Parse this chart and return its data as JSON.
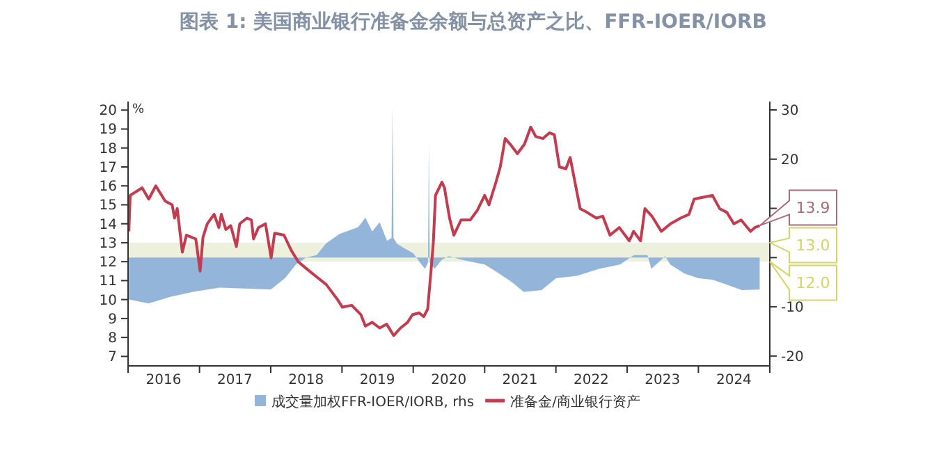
{
  "chart_data": {
    "type": "line",
    "title": "图表 1:   美国商业银行准备金余额与总资产之比、FFR-IOER/IORB",
    "ylabel": "%",
    "legend": "bottom",
    "grid": false,
    "xlim": [
      "2016-01-01",
      "2025-01-01"
    ],
    "xticks": [
      {
        "value": "2016-01-01",
        "label": null
      },
      {
        "value": "2016-07-01",
        "label": "2016"
      },
      {
        "value": "2017-01-01",
        "label": null
      },
      {
        "value": "2017-07-01",
        "label": "2017"
      },
      {
        "value": "2018-01-01",
        "label": null
      },
      {
        "value": "2018-07-01",
        "label": "2018"
      },
      {
        "value": "2019-01-01",
        "label": null
      },
      {
        "value": "2019-07-01",
        "label": "2019"
      },
      {
        "value": "2020-01-01",
        "label": null
      },
      {
        "value": "2020-07-01",
        "label": "2020"
      },
      {
        "value": "2021-01-01",
        "label": null
      },
      {
        "value": "2021-07-01",
        "label": "2021"
      },
      {
        "value": "2022-01-01",
        "label": null
      },
      {
        "value": "2022-07-01",
        "label": "2022"
      },
      {
        "value": "2023-01-01",
        "label": null
      },
      {
        "value": "2023-07-01",
        "label": "2023"
      },
      {
        "value": "2024-01-01",
        "label": null
      },
      {
        "value": "2024-07-01",
        "label": "2024"
      },
      {
        "value": "2025-01-01",
        "label": null
      }
    ],
    "ylim": [
      6.5,
      20.45
    ],
    "yticks": [
      7,
      8,
      9,
      10,
      11,
      12,
      13,
      14,
      15,
      16,
      17,
      18,
      19,
      20
    ],
    "y2lim": [
      -22,
      31.7
    ],
    "y2ticks": [
      -20,
      -10,
      {
        "value": 0,
        "label": null
      },
      {
        "value": 10,
        "label": null
      },
      20,
      30
    ],
    "bands": [
      {
        "axis": "y",
        "from": 12,
        "to": 13,
        "color": "#edf0dc"
      }
    ],
    "series": [
      {
        "name": "成交量加权FFR-IOER/IORB, rhs",
        "type": "area",
        "axis": "y2",
        "color": "#93b5da",
        "x": [
          "2016-01-05",
          "2016-04-15",
          "2016-08-01",
          "2016-11-25",
          "2017-04-15",
          "2017-09-10",
          "2018-01-01",
          "2018-03-15",
          "2018-05-10",
          "2018-07-01",
          "2018-08-24",
          "2018-10-12",
          "2018-12-20",
          "2019-03-25",
          "2019-05-01",
          "2019-06-05",
          "2019-07-13",
          "2019-08-20",
          "2019-09-12",
          "2019-09-17",
          "2019-09-22",
          "2019-10-10",
          "2019-11-20",
          "2020-01-01",
          "2020-02-05",
          "2020-03-01",
          "2020-03-17",
          "2020-03-21",
          "2020-03-25",
          "2020-04-20",
          "2020-05-25",
          "2020-07-01",
          "2020-09-10",
          "2021-01-01",
          "2021-03-15",
          "2021-05-25",
          "2021-07-20",
          "2021-10-20",
          "2022-01-01",
          "2022-04-20",
          "2022-08-10",
          "2022-11-25",
          "2023-02-05",
          "2023-04-15",
          "2023-05-05",
          "2023-07-15",
          "2023-08-10",
          "2023-10-20",
          "2024-01-01",
          "2024-03-15",
          "2024-05-26",
          "2024-08-10",
          "2024-11-10"
        ],
        "values": [
          -8.5,
          -9.3,
          -8.0,
          -7.0,
          -6.1,
          -6.3,
          -6.5,
          -4.2,
          -1.4,
          0,
          0.5,
          2.9,
          4.8,
          6.2,
          8.1,
          5.3,
          7.2,
          3.4,
          4.0,
          31.0,
          4.0,
          2.8,
          1.8,
          0.9,
          -1.0,
          -2.3,
          -1.0,
          23.6,
          -1.0,
          -2.3,
          -0.5,
          0.3,
          -0.5,
          -1.4,
          -3.2,
          -5.1,
          -7.0,
          -6.6,
          -4.2,
          -3.7,
          -2.3,
          -1.4,
          0.5,
          0.5,
          -2.3,
          0.3,
          -1.4,
          -3.2,
          -4.2,
          -4.5,
          -5.5,
          -6.6,
          -6.5
        ]
      },
      {
        "name": "准备金/商业银行资产",
        "color": "#c23b4e",
        "x": [
          "2016-01-05",
          "2016-01-12",
          "2016-03-13",
          "2016-04-16",
          "2016-05-22",
          "2016-07-09",
          "2016-08-14",
          "2016-08-26",
          "2016-09-09",
          "2016-10-05",
          "2016-10-26",
          "2016-12-13",
          "2017-01-04",
          "2017-01-19",
          "2017-02-10",
          "2017-03-17",
          "2017-04-10",
          "2017-04-23",
          "2017-05-16",
          "2017-06-10",
          "2017-07-09",
          "2017-07-26",
          "2017-09-01",
          "2017-09-24",
          "2017-10-05",
          "2017-10-30",
          "2017-12-05",
          "2018-01-03",
          "2018-01-21",
          "2018-03-10",
          "2018-04-16",
          "2018-05-22",
          "2018-06-25",
          "2018-08-24",
          "2018-10-12",
          "2018-12-09",
          "2019-01-03",
          "2019-02-20",
          "2019-04-08",
          "2019-05-01",
          "2019-06-05",
          "2019-07-13",
          "2019-08-18",
          "2019-09-23",
          "2019-10-28",
          "2019-12-03",
          "2019-12-28",
          "2020-01-31",
          "2020-02-24",
          "2020-03-15",
          "2020-04-01",
          "2020-04-13",
          "2020-04-24",
          "2020-05-27",
          "2020-06-09",
          "2020-07-05",
          "2020-07-27",
          "2020-09-02",
          "2020-10-19",
          "2020-11-24",
          "2021-01-01",
          "2021-01-23",
          "2021-02-28",
          "2021-03-22",
          "2021-04-16",
          "2021-05-12",
          "2021-06-18",
          "2021-07-24",
          "2021-08-25",
          "2021-09-20",
          "2021-10-27",
          "2021-11-29",
          "2021-12-24",
          "2022-01-19",
          "2022-02-21",
          "2022-03-15",
          "2022-05-05",
          "2022-06-10",
          "2022-07-27",
          "2022-08-29",
          "2022-10-05",
          "2022-11-22",
          "2023-01-12",
          "2023-02-03",
          "2023-03-11",
          "2023-04-02",
          "2023-05-08",
          "2023-06-25",
          "2023-08-11",
          "2023-10-02",
          "2023-11-14",
          "2023-12-10",
          "2024-01-26",
          "2024-03-13",
          "2024-04-19",
          "2024-05-26",
          "2024-07-01",
          "2024-08-07",
          "2024-09-24",
          "2024-10-16",
          "2024-11-10"
        ],
        "values": [
          13.6,
          15.5,
          15.9,
          15.3,
          16.0,
          15.2,
          15.0,
          14.3,
          14.8,
          12.5,
          13.4,
          13.2,
          11.5,
          13.3,
          14.0,
          14.5,
          13.8,
          14.5,
          13.7,
          13.9,
          12.8,
          14.0,
          14.3,
          14.2,
          13.2,
          13.8,
          14.0,
          12.2,
          13.5,
          13.4,
          12.6,
          12.0,
          11.7,
          11.2,
          10.8,
          10.0,
          9.6,
          9.7,
          9.2,
          8.6,
          8.8,
          8.5,
          8.7,
          8.1,
          8.5,
          8.8,
          9.2,
          9.3,
          9.1,
          9.5,
          11.5,
          13.0,
          15.5,
          16.2,
          15.9,
          14.3,
          13.4,
          14.2,
          14.2,
          14.7,
          15.5,
          15.0,
          16.2,
          17.0,
          18.5,
          18.2,
          17.7,
          18.2,
          19.1,
          18.6,
          18.5,
          18.8,
          18.7,
          17.0,
          16.9,
          17.5,
          14.8,
          14.6,
          14.3,
          14.4,
          13.4,
          13.8,
          13.1,
          13.6,
          13.1,
          14.8,
          14.4,
          13.6,
          14.0,
          14.3,
          14.5,
          15.3,
          15.4,
          15.5,
          14.8,
          14.6,
          14.0,
          14.2,
          13.6,
          13.8,
          13.9
        ]
      }
    ],
    "annotations": [
      {
        "text": "13.9",
        "x": "2024-11-10",
        "y": 13.9
      },
      {
        "text": "13.0",
        "x": "2025-01-01",
        "y": 13
      },
      {
        "text": "12.0",
        "x": "2025-01-01",
        "y": 12
      }
    ]
  }
}
